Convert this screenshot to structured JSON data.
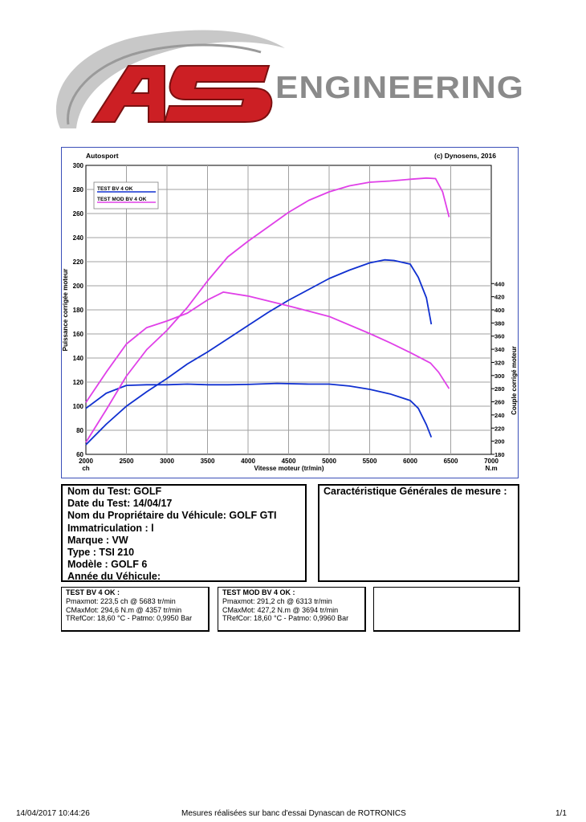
{
  "logo": {
    "mark": "AS",
    "name": "ENGINEERING"
  },
  "chart_header": {
    "left": "Autosport",
    "right": "(c) Dynosens, 2016"
  },
  "chart_data": {
    "type": "line",
    "xlabel": "Vitesse moteur (tr/min)",
    "x_unit_left": "ch",
    "x_unit_right": "N.m",
    "ylabel_left": "Puissance corrigée moteur",
    "ylabel_right": "Couple corrigé moteur",
    "xlim": [
      2000,
      7000
    ],
    "xticks": [
      2000,
      2500,
      3000,
      3500,
      4000,
      4500,
      5000,
      5500,
      6000,
      6500,
      7000
    ],
    "ylim_left": [
      60,
      300
    ],
    "yticks_left": [
      60,
      80,
      100,
      120,
      140,
      160,
      180,
      200,
      220,
      240,
      260,
      280,
      300
    ],
    "ylim_right": [
      180,
      620
    ],
    "yticks_right": [
      180,
      200,
      220,
      240,
      260,
      280,
      300,
      320,
      340,
      360,
      380,
      400,
      420,
      440
    ],
    "grid": true,
    "legend_position": "top-left",
    "series": [
      {
        "name": "TEST BV 4 OK",
        "color": "#1030d0",
        "kind": "power",
        "x": [
          2000,
          2250,
          2500,
          2750,
          3000,
          3250,
          3500,
          3750,
          4000,
          4250,
          4500,
          4750,
          5000,
          5250,
          5500,
          5683,
          5800,
          6000,
          6100,
          6200,
          6260
        ],
        "y": [
          68,
          85,
          100,
          112,
          123,
          135,
          145,
          156,
          167,
          178,
          188,
          197,
          206,
          213,
          219,
          221.5,
          221,
          218,
          207,
          190,
          168
        ]
      },
      {
        "name": "TEST BV 4 OK",
        "color": "#1030d0",
        "kind": "torque",
        "x": [
          2000,
          2250,
          2500,
          2750,
          3000,
          3250,
          3500,
          3750,
          4000,
          4357,
          4750,
          5000,
          5250,
          5500,
          5750,
          6000,
          6100,
          6200,
          6260
        ],
        "y": [
          250,
          273,
          285,
          286,
          286,
          287,
          286,
          286,
          286.5,
          288,
          287,
          287,
          284,
          279,
          272,
          262,
          250,
          225,
          206
        ]
      },
      {
        "name": "TEST MOD BV 4 OK",
        "color": "#e040e8",
        "kind": "power",
        "x": [
          2000,
          2250,
          2500,
          2750,
          3000,
          3250,
          3500,
          3750,
          4000,
          4250,
          4500,
          4750,
          5000,
          5250,
          5500,
          5750,
          6000,
          6200,
          6313,
          6400,
          6480
        ],
        "y": [
          70,
          97,
          125,
          147,
          163,
          182,
          204,
          224,
          237,
          249,
          261,
          271,
          278,
          283,
          286,
          287,
          288.5,
          289.5,
          289,
          278,
          257
        ]
      },
      {
        "name": "TEST MOD BV 4 OK",
        "color": "#e040e8",
        "kind": "torque",
        "x": [
          2000,
          2250,
          2500,
          2750,
          3000,
          3250,
          3500,
          3694,
          4000,
          4500,
          5000,
          5500,
          5750,
          6000,
          6250,
          6350,
          6480
        ],
        "y": [
          259,
          305,
          348,
          373,
          383,
          395,
          415,
          427,
          421,
          406,
          390,
          364,
          350,
          335,
          319,
          305,
          280
        ]
      }
    ]
  },
  "test_info": [
    "Nom du Test: GOLF",
    "Date du Test: 14/04/17",
    "Nom du Propriétaire du Véhicule: GOLF GTI",
    "Immatriculation  : l",
    "Marque  : VW",
    "Type  : TSI 210",
    "Modèle  : GOLF 6",
    "Année du Véhicule:"
  ],
  "characteristics_title": "Caractéristique Générales de mesure :",
  "results": [
    {
      "title": "TEST BV 4 OK :",
      "lines": [
        "Pmaxmot: 223,5 ch @ 5683 tr/min",
        "CMaxMot: 294,6 N.m @ 4357 tr/min",
        "TRefCor: 18,60 °C - Patmo: 0,9950 Bar"
      ]
    },
    {
      "title": "TEST MOD BV 4 OK :",
      "lines": [
        "Pmaxmot: 291,2 ch @ 6313 tr/min",
        "CMaxMot: 427,2 N.m @ 3694 tr/min",
        "TRefCor: 18,60 °C - Patmo: 0,9960 Bar"
      ]
    }
  ],
  "footer": {
    "timestamp": "14/04/2017 10:44:26",
    "center": "Mesures réalisées sur banc d'essai Dynascan de ROTRONICS",
    "page": "1/1"
  },
  "colors": {
    "blue": "#1030d0",
    "magenta": "#e040e8",
    "logo_red": "#cc1f24",
    "logo_grey": "#8a8a8a"
  }
}
